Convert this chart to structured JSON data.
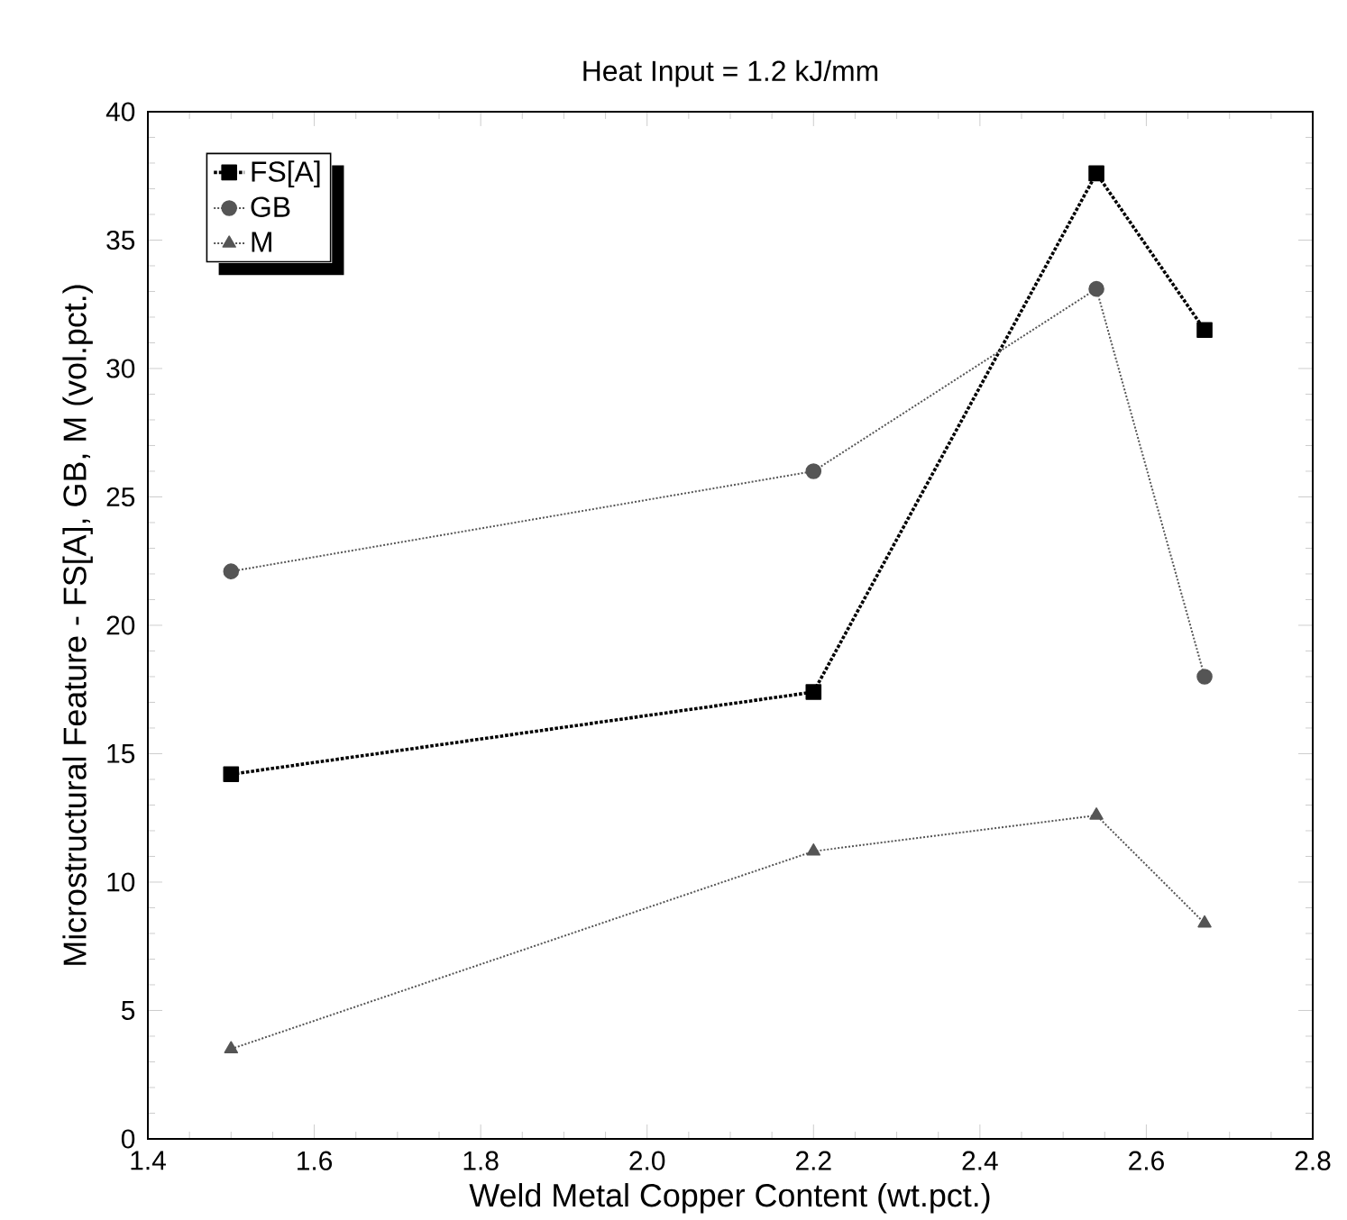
{
  "chart_data": {
    "type": "line",
    "title": "Heat Input = 1.2 kJ/mm",
    "xlabel": "Weld Metal Copper Content (wt.pct.)",
    "ylabel": "Microstructural Feature - FS[A], GB, M (vol.pct.)",
    "x": [
      1.5,
      2.2,
      2.54,
      2.67
    ],
    "series": [
      {
        "name": "FS[A]",
        "color": "#000000",
        "marker": "square",
        "values": [
          14.2,
          17.4,
          37.6,
          31.5
        ]
      },
      {
        "name": "GB",
        "color": "#555555",
        "marker": "circle",
        "values": [
          22.1,
          26.0,
          33.1,
          18.0
        ]
      },
      {
        "name": "M",
        "color": "#555555",
        "marker": "triangle",
        "values": [
          3.5,
          11.2,
          12.6,
          8.4
        ]
      }
    ],
    "xlim": [
      1.4,
      2.8
    ],
    "xticks": [
      {
        "value": 1.4,
        "label": "1.4"
      },
      {
        "value": 1.6,
        "label": "1.6"
      },
      {
        "value": 1.8,
        "label": "1.8"
      },
      {
        "value": 2.0,
        "label": "2.0"
      },
      {
        "value": 2.2,
        "label": "2.2"
      },
      {
        "value": 2.4,
        "label": "2.4"
      },
      {
        "value": 2.6,
        "label": "2.6"
      },
      {
        "value": 2.8,
        "label": "2.8"
      }
    ],
    "ylim": [
      0,
      40
    ],
    "yticks": [
      0,
      5,
      10,
      15,
      20,
      25,
      30,
      35,
      40
    ],
    "grid": false,
    "legend": "top left",
    "line_style": "dotted"
  }
}
